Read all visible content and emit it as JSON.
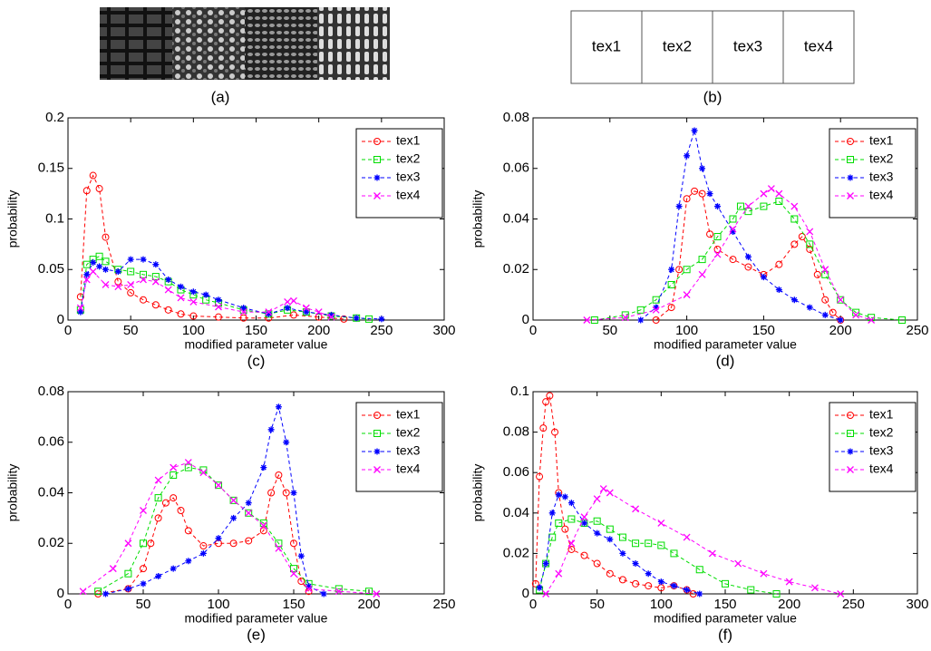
{
  "figure": {
    "a_caption": "(a)",
    "b_labels": [
      "tex1",
      "tex2",
      "tex3",
      "tex4"
    ],
    "b_caption": "(b)"
  },
  "chart_data": [
    {
      "type": "line",
      "caption": "(c)",
      "x_label": "modified parameter value",
      "y_label": "probability",
      "xlim": [
        0,
        300
      ],
      "xticks": [
        0,
        50,
        100,
        150,
        200,
        250,
        300
      ],
      "ylim": [
        0,
        0.2
      ],
      "yticks": [
        0,
        0.05,
        0.1,
        0.15,
        0.2
      ],
      "legend": "upper right",
      "line_style": "dashed",
      "series": [
        {
          "name": "tex1",
          "color": "#ff0000",
          "marker": "o",
          "x": [
            10,
            15,
            20,
            25,
            30,
            40,
            50,
            60,
            70,
            80,
            90,
            100,
            120,
            140,
            160,
            180,
            200,
            220
          ],
          "values": [
            0.023,
            0.128,
            0.143,
            0.13,
            0.082,
            0.038,
            0.027,
            0.02,
            0.015,
            0.01,
            0.006,
            0.004,
            0.003,
            0.002,
            0.002,
            0.005,
            0.003,
            0.001
          ]
        },
        {
          "name": "tex2",
          "color": "#00dd00",
          "marker": "s",
          "x": [
            10,
            15,
            20,
            25,
            30,
            40,
            50,
            60,
            70,
            80,
            90,
            100,
            110,
            120,
            140,
            160,
            175,
            190,
            210,
            230,
            240
          ],
          "values": [
            0.01,
            0.055,
            0.06,
            0.063,
            0.058,
            0.05,
            0.048,
            0.045,
            0.043,
            0.038,
            0.03,
            0.025,
            0.02,
            0.017,
            0.01,
            0.006,
            0.01,
            0.008,
            0.004,
            0.002,
            0.001
          ]
        },
        {
          "name": "tex3",
          "color": "#0000ff",
          "marker": "*",
          "x": [
            10,
            15,
            20,
            25,
            30,
            40,
            50,
            60,
            70,
            80,
            90,
            100,
            110,
            120,
            140,
            160,
            175,
            190,
            210,
            230,
            250
          ],
          "values": [
            0.008,
            0.045,
            0.057,
            0.053,
            0.05,
            0.048,
            0.06,
            0.06,
            0.055,
            0.04,
            0.033,
            0.028,
            0.025,
            0.02,
            0.012,
            0.006,
            0.012,
            0.008,
            0.005,
            0.002,
            0.001
          ]
        },
        {
          "name": "tex4",
          "color": "#ff00ff",
          "marker": "x",
          "x": [
            10,
            15,
            20,
            30,
            40,
            50,
            60,
            70,
            80,
            90,
            100,
            120,
            140,
            160,
            175,
            180,
            190,
            200,
            210
          ],
          "values": [
            0.012,
            0.04,
            0.048,
            0.035,
            0.033,
            0.035,
            0.04,
            0.038,
            0.03,
            0.022,
            0.018,
            0.013,
            0.008,
            0.008,
            0.018,
            0.019,
            0.012,
            0.008,
            0.003
          ]
        }
      ]
    },
    {
      "type": "line",
      "caption": "(d)",
      "x_label": "modified parameter value",
      "y_label": "probability",
      "xlim": [
        0,
        250
      ],
      "xticks": [
        0,
        50,
        100,
        150,
        200,
        250
      ],
      "ylim": [
        0,
        0.08
      ],
      "yticks": [
        0,
        0.02,
        0.04,
        0.06,
        0.08
      ],
      "legend": "upper right",
      "line_style": "dashed",
      "series": [
        {
          "name": "tex1",
          "color": "#ff0000",
          "marker": "o",
          "x": [
            80,
            90,
            95,
            100,
            105,
            110,
            115,
            120,
            130,
            140,
            150,
            160,
            170,
            175,
            180,
            185,
            190,
            195,
            200
          ],
          "values": [
            0,
            0.005,
            0.02,
            0.048,
            0.051,
            0.05,
            0.034,
            0.028,
            0.024,
            0.021,
            0.018,
            0.022,
            0.03,
            0.033,
            0.028,
            0.018,
            0.008,
            0.003,
            0
          ]
        },
        {
          "name": "tex2",
          "color": "#00dd00",
          "marker": "s",
          "x": [
            40,
            60,
            70,
            80,
            90,
            100,
            110,
            120,
            130,
            135,
            140,
            150,
            160,
            170,
            180,
            190,
            200,
            210,
            220,
            240
          ],
          "values": [
            0,
            0.002,
            0.004,
            0.008,
            0.014,
            0.02,
            0.024,
            0.033,
            0.04,
            0.045,
            0.043,
            0.045,
            0.047,
            0.04,
            0.03,
            0.018,
            0.008,
            0.003,
            0.001,
            0
          ]
        },
        {
          "name": "tex3",
          "color": "#0000ff",
          "marker": "*",
          "x": [
            70,
            80,
            90,
            95,
            100,
            105,
            110,
            115,
            120,
            130,
            140,
            150,
            160,
            170,
            180,
            190,
            200
          ],
          "values": [
            0,
            0.005,
            0.02,
            0.045,
            0.065,
            0.075,
            0.06,
            0.05,
            0.045,
            0.035,
            0.025,
            0.017,
            0.012,
            0.008,
            0.005,
            0.002,
            0
          ]
        },
        {
          "name": "tex4",
          "color": "#ff00ff",
          "marker": "x",
          "x": [
            35,
            60,
            80,
            100,
            110,
            120,
            130,
            140,
            150,
            155,
            160,
            170,
            180,
            190,
            200,
            210,
            220
          ],
          "values": [
            0,
            0.001,
            0.004,
            0.01,
            0.018,
            0.026,
            0.036,
            0.045,
            0.05,
            0.052,
            0.05,
            0.045,
            0.035,
            0.02,
            0.008,
            0.002,
            0
          ]
        }
      ]
    },
    {
      "type": "line",
      "caption": "(e)",
      "x_label": "modified parameter value",
      "y_label": "probability",
      "xlim": [
        0,
        250
      ],
      "xticks": [
        0,
        50,
        100,
        150,
        200,
        250
      ],
      "ylim": [
        0,
        0.08
      ],
      "yticks": [
        0,
        0.02,
        0.04,
        0.06,
        0.08
      ],
      "legend": "upper right",
      "line_style": "dashed",
      "series": [
        {
          "name": "tex1",
          "color": "#ff0000",
          "marker": "o",
          "x": [
            20,
            40,
            50,
            55,
            60,
            65,
            70,
            75,
            80,
            90,
            100,
            110,
            120,
            130,
            135,
            140,
            145,
            150,
            155,
            160
          ],
          "values": [
            0,
            0.002,
            0.01,
            0.02,
            0.03,
            0.036,
            0.038,
            0.033,
            0.025,
            0.019,
            0.02,
            0.02,
            0.021,
            0.025,
            0.04,
            0.047,
            0.04,
            0.02,
            0.005,
            0.001
          ]
        },
        {
          "name": "tex2",
          "color": "#00dd00",
          "marker": "s",
          "x": [
            20,
            40,
            50,
            60,
            70,
            80,
            90,
            100,
            110,
            120,
            130,
            140,
            150,
            160,
            180,
            200
          ],
          "values": [
            0.001,
            0.008,
            0.02,
            0.038,
            0.047,
            0.05,
            0.049,
            0.043,
            0.037,
            0.032,
            0.028,
            0.02,
            0.01,
            0.004,
            0.002,
            0.001
          ]
        },
        {
          "name": "tex3",
          "color": "#0000ff",
          "marker": "*",
          "x": [
            25,
            40,
            50,
            60,
            70,
            80,
            90,
            100,
            110,
            120,
            130,
            135,
            140,
            145,
            150,
            155,
            160,
            170
          ],
          "values": [
            0,
            0.002,
            0.004,
            0.007,
            0.01,
            0.013,
            0.016,
            0.022,
            0.03,
            0.036,
            0.05,
            0.065,
            0.074,
            0.06,
            0.04,
            0.015,
            0.003,
            0
          ]
        },
        {
          "name": "tex4",
          "color": "#ff00ff",
          "marker": "x",
          "x": [
            10,
            30,
            40,
            50,
            60,
            70,
            80,
            90,
            100,
            110,
            120,
            130,
            140,
            150,
            160,
            180,
            205
          ],
          "values": [
            0.001,
            0.01,
            0.02,
            0.033,
            0.045,
            0.05,
            0.052,
            0.048,
            0.043,
            0.037,
            0.032,
            0.027,
            0.018,
            0.008,
            0.002,
            0.001,
            0
          ]
        }
      ]
    },
    {
      "type": "line",
      "caption": "(f)",
      "x_label": "modified parameter value",
      "y_label": "probability",
      "xlim": [
        0,
        300
      ],
      "xticks": [
        0,
        50,
        100,
        150,
        200,
        250,
        300
      ],
      "ylim": [
        0,
        0.1
      ],
      "yticks": [
        0,
        0.02,
        0.04,
        0.06,
        0.08,
        0.1
      ],
      "legend": "upper right",
      "line_style": "dashed",
      "series": [
        {
          "name": "tex1",
          "color": "#ff0000",
          "marker": "o",
          "x": [
            2,
            5,
            8,
            10,
            13,
            17,
            20,
            25,
            30,
            40,
            50,
            60,
            70,
            80,
            90,
            100,
            110,
            120,
            125
          ],
          "values": [
            0.005,
            0.058,
            0.082,
            0.095,
            0.098,
            0.08,
            0.05,
            0.032,
            0.022,
            0.019,
            0.015,
            0.01,
            0.007,
            0.005,
            0.004,
            0.003,
            0.004,
            0.002,
            0
          ]
        },
        {
          "name": "tex2",
          "color": "#00dd00",
          "marker": "s",
          "x": [
            5,
            10,
            15,
            20,
            30,
            40,
            50,
            60,
            70,
            80,
            90,
            100,
            110,
            130,
            150,
            170,
            190
          ],
          "values": [
            0.002,
            0.015,
            0.028,
            0.035,
            0.037,
            0.035,
            0.036,
            0.032,
            0.028,
            0.025,
            0.025,
            0.024,
            0.02,
            0.012,
            0.005,
            0.002,
            0
          ]
        },
        {
          "name": "tex3",
          "color": "#0000ff",
          "marker": "*",
          "x": [
            5,
            10,
            15,
            20,
            25,
            30,
            40,
            50,
            60,
            70,
            80,
            90,
            100,
            110,
            120,
            130
          ],
          "values": [
            0.003,
            0.015,
            0.04,
            0.049,
            0.048,
            0.045,
            0.035,
            0.03,
            0.027,
            0.02,
            0.015,
            0.01,
            0.006,
            0.004,
            0.002,
            0
          ]
        },
        {
          "name": "tex4",
          "color": "#ff00ff",
          "marker": "x",
          "x": [
            10,
            20,
            30,
            40,
            50,
            55,
            60,
            80,
            100,
            120,
            140,
            160,
            180,
            200,
            220,
            240
          ],
          "values": [
            0,
            0.01,
            0.025,
            0.038,
            0.047,
            0.052,
            0.05,
            0.042,
            0.035,
            0.028,
            0.02,
            0.015,
            0.01,
            0.006,
            0.003,
            0
          ]
        }
      ]
    }
  ]
}
